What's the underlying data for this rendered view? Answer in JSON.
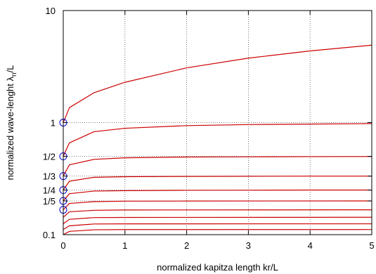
{
  "chart_data": {
    "type": "line",
    "title": "",
    "xlabel": "normalized kapitza length kr/L",
    "ylabel_main": "normalized wave-lenght λ",
    "ylabel_sub": "n",
    "ylabel_tail": "/L",
    "xlim": [
      0,
      5
    ],
    "ylim": [
      0.1,
      10
    ],
    "yscale": "log",
    "grid": true,
    "grid_style": "dotted",
    "x_ticks": [
      0,
      1,
      2,
      3,
      4,
      5
    ],
    "x_tick_labels": [
      "0",
      "1",
      "2",
      "3",
      "4",
      "5"
    ],
    "y_ticks": [
      0.1,
      0.2,
      0.25,
      0.3333,
      0.5,
      1,
      10
    ],
    "y_tick_labels": [
      "0.1",
      "1/5",
      "1/4",
      "1/3",
      "1/2",
      "1",
      "10"
    ],
    "curve_color": "#cc0000",
    "marker_color": "#0000cc",
    "series": [
      {
        "n": 1,
        "start": 1.0,
        "values_at_x": [
          [
            0,
            1.0
          ],
          [
            0.1,
            1.36
          ],
          [
            0.5,
            1.85
          ],
          [
            1,
            2.29
          ],
          [
            2,
            3.08
          ],
          [
            3,
            3.76
          ],
          [
            4,
            4.36
          ],
          [
            5,
            4.91
          ]
        ]
      },
      {
        "n": 2,
        "start": 0.5,
        "values_at_x": [
          [
            0,
            0.5
          ],
          [
            0.1,
            0.66
          ],
          [
            0.5,
            0.83
          ],
          [
            1,
            0.89
          ],
          [
            2,
            0.94
          ],
          [
            3,
            0.96
          ],
          [
            4,
            0.97
          ],
          [
            5,
            0.98
          ]
        ]
      },
      {
        "n": 3,
        "start": 0.3333,
        "values_at_x": [
          [
            0,
            0.3333
          ],
          [
            0.1,
            0.42
          ],
          [
            0.5,
            0.47
          ],
          [
            1,
            0.485
          ],
          [
            2,
            0.493
          ],
          [
            3,
            0.495
          ],
          [
            4,
            0.497
          ],
          [
            5,
            0.498
          ]
        ]
      },
      {
        "n": 4,
        "start": 0.25,
        "values_at_x": [
          [
            0,
            0.25
          ],
          [
            0.1,
            0.3
          ],
          [
            0.5,
            0.325
          ],
          [
            1,
            0.329
          ],
          [
            2,
            0.331
          ],
          [
            3,
            0.332
          ],
          [
            4,
            0.333
          ],
          [
            5,
            0.333
          ]
        ]
      },
      {
        "n": 5,
        "start": 0.2,
        "values_at_x": [
          [
            0,
            0.2
          ],
          [
            0.1,
            0.232
          ],
          [
            0.5,
            0.245
          ],
          [
            1,
            0.247
          ],
          [
            2,
            0.249
          ],
          [
            3,
            0.2495
          ],
          [
            4,
            0.25
          ],
          [
            5,
            0.25
          ]
        ]
      },
      {
        "n": 6,
        "start": 0.1667,
        "values_at_x": [
          [
            0,
            0.1667
          ],
          [
            0.1,
            0.19
          ],
          [
            0.5,
            0.197
          ],
          [
            1,
            0.199
          ],
          [
            2,
            0.1995
          ],
          [
            5,
            0.2
          ]
        ]
      },
      {
        "n": 7,
        "start": 0.1429,
        "values_at_x": [
          [
            0,
            0.1429
          ],
          [
            0.1,
            0.16
          ],
          [
            0.5,
            0.165
          ],
          [
            1,
            0.166
          ],
          [
            5,
            0.1667
          ]
        ]
      },
      {
        "n": 8,
        "start": 0.125,
        "values_at_x": [
          [
            0,
            0.125
          ],
          [
            0.1,
            0.137
          ],
          [
            0.5,
            0.142
          ],
          [
            1,
            0.1425
          ],
          [
            5,
            0.1429
          ]
        ]
      },
      {
        "n": 9,
        "start": 0.1111,
        "values_at_x": [
          [
            0,
            0.1111
          ],
          [
            0.1,
            0.12
          ],
          [
            0.5,
            0.1245
          ],
          [
            1,
            0.1248
          ],
          [
            5,
            0.125
          ]
        ]
      },
      {
        "n": 10,
        "start": 0.1,
        "values_at_x": [
          [
            0,
            0.1
          ],
          [
            0.1,
            0.107
          ],
          [
            0.5,
            0.1105
          ],
          [
            1,
            0.111
          ],
          [
            5,
            0.1111
          ]
        ]
      }
    ],
    "markers": [
      {
        "x": 0,
        "y": 1.0
      },
      {
        "x": 0,
        "y": 0.5
      },
      {
        "x": 0,
        "y": 0.3333
      },
      {
        "x": 0,
        "y": 0.25
      },
      {
        "x": 0,
        "y": 0.2
      },
      {
        "x": 0,
        "y": 0.1667
      }
    ]
  }
}
